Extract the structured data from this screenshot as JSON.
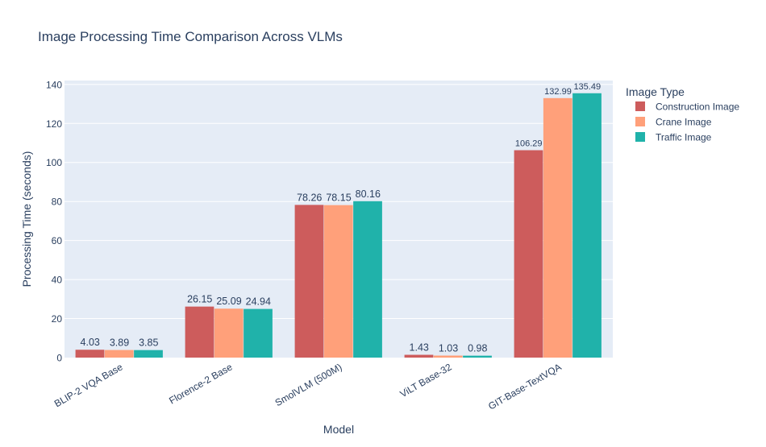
{
  "chart_data": {
    "type": "bar",
    "title": "Image Processing Time Comparison Across VLMs",
    "xlabel": "Model",
    "ylabel": "Processing Time (seconds)",
    "ylim": [
      0,
      142
    ],
    "yticks": [
      0,
      20,
      40,
      60,
      80,
      100,
      120,
      140
    ],
    "grid": true,
    "legend_title": "Image Type",
    "legend_position": "right",
    "categories": [
      "BLIP-2 VQA Base",
      "Florence-2 Base",
      "SmolVLM (500M)",
      "ViLT Base-32",
      "GIT-Base-TextVQA"
    ],
    "series": [
      {
        "name": "Construction Image",
        "color": "#cd5c5c",
        "values": [
          4.03,
          26.15,
          78.26,
          1.43,
          106.29
        ]
      },
      {
        "name": "Crane Image",
        "color": "#ffa07a",
        "values": [
          3.89,
          25.09,
          78.15,
          1.03,
          132.99
        ]
      },
      {
        "name": "Traffic Image",
        "color": "#20b2aa",
        "values": [
          3.85,
          24.94,
          80.16,
          0.98,
          135.49
        ]
      }
    ],
    "colors": {
      "plot_bg": "#e5ecf6",
      "grid": "#ffffff",
      "text": "#2a3f5f"
    }
  }
}
